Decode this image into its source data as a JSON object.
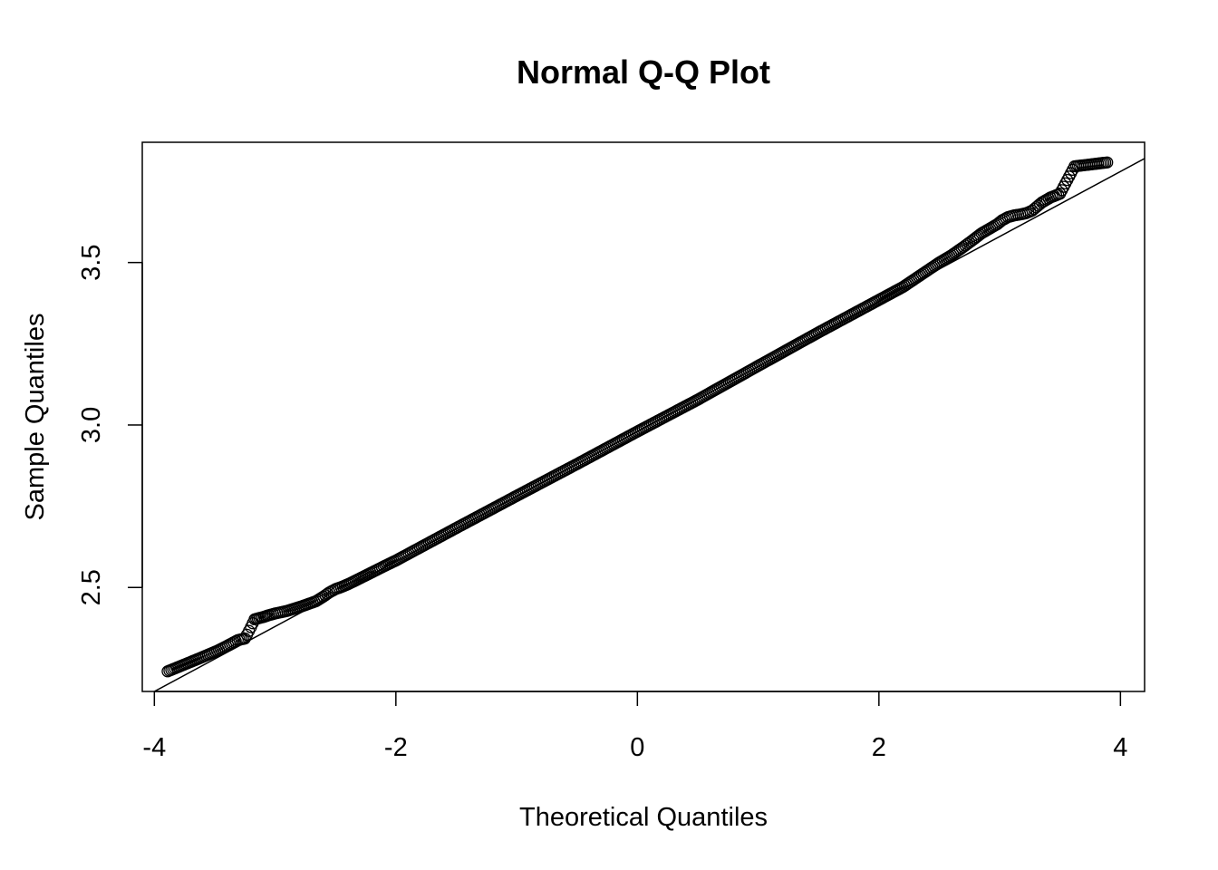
{
  "chart_data": {
    "type": "scatter",
    "title": "Normal Q-Q Plot",
    "xlabel": "Theoretical Quantiles",
    "ylabel": "Sample Quantiles",
    "xlim": [
      -4.1,
      4.2
    ],
    "ylim": [
      2.18,
      3.87
    ],
    "x_ticks": [
      -4,
      -2,
      0,
      2,
      4
    ],
    "x_tick_labels": [
      "-4",
      "-2",
      "0",
      "2",
      "4"
    ],
    "y_ticks": [
      2.5,
      3.0,
      3.5
    ],
    "y_tick_labels": [
      "2.5",
      "3.0",
      "3.5"
    ],
    "grid": false,
    "reference_line": {
      "slope": 0.2,
      "intercept": 2.98
    },
    "sample_points": [
      {
        "x": -3.89,
        "y": 2.242
      },
      {
        "x": -3.62,
        "y": 2.283
      },
      {
        "x": -3.48,
        "y": 2.305
      },
      {
        "x": -3.39,
        "y": 2.322
      },
      {
        "x": -3.31,
        "y": 2.338
      },
      {
        "x": -3.25,
        "y": 2.343
      },
      {
        "x": -3.2,
        "y": 2.378
      },
      {
        "x": -3.17,
        "y": 2.402
      },
      {
        "x": -3.13,
        "y": 2.406
      },
      {
        "x": -3.09,
        "y": 2.41
      },
      {
        "x": -3.05,
        "y": 2.415
      },
      {
        "x": -3.0,
        "y": 2.42
      },
      {
        "x": -2.95,
        "y": 2.424
      },
      {
        "x": -2.9,
        "y": 2.428
      },
      {
        "x": -2.84,
        "y": 2.435
      },
      {
        "x": -2.78,
        "y": 2.442
      },
      {
        "x": -2.72,
        "y": 2.45
      },
      {
        "x": -2.66,
        "y": 2.458
      },
      {
        "x": -2.6,
        "y": 2.472
      },
      {
        "x": -2.55,
        "y": 2.485
      },
      {
        "x": -2.5,
        "y": 2.495
      },
      {
        "x": -2.44,
        "y": 2.503
      },
      {
        "x": -2.38,
        "y": 2.513
      },
      {
        "x": -2.32,
        "y": 2.524
      },
      {
        "x": -2.25,
        "y": 2.537
      },
      {
        "x": -2.18,
        "y": 2.55
      },
      {
        "x": -2.1,
        "y": 2.565
      },
      {
        "x": -2.0,
        "y": 2.583
      },
      {
        "x": -1.8,
        "y": 2.623
      },
      {
        "x": -1.5,
        "y": 2.683
      },
      {
        "x": -1.0,
        "y": 2.782
      },
      {
        "x": -0.5,
        "y": 2.88
      },
      {
        "x": 0.0,
        "y": 2.98
      },
      {
        "x": 0.5,
        "y": 3.078
      },
      {
        "x": 1.0,
        "y": 3.182
      },
      {
        "x": 1.5,
        "y": 3.285
      },
      {
        "x": 2.0,
        "y": 3.385
      },
      {
        "x": 2.1,
        "y": 3.405
      },
      {
        "x": 2.2,
        "y": 3.425
      },
      {
        "x": 2.3,
        "y": 3.45
      },
      {
        "x": 2.4,
        "y": 3.475
      },
      {
        "x": 2.5,
        "y": 3.5
      },
      {
        "x": 2.6,
        "y": 3.522
      },
      {
        "x": 2.7,
        "y": 3.548
      },
      {
        "x": 2.78,
        "y": 3.57
      },
      {
        "x": 2.85,
        "y": 3.59
      },
      {
        "x": 2.92,
        "y": 3.605
      },
      {
        "x": 2.98,
        "y": 3.618
      },
      {
        "x": 3.02,
        "y": 3.63
      },
      {
        "x": 3.07,
        "y": 3.64
      },
      {
        "x": 3.12,
        "y": 3.645
      },
      {
        "x": 3.17,
        "y": 3.648
      },
      {
        "x": 3.22,
        "y": 3.652
      },
      {
        "x": 3.27,
        "y": 3.66
      },
      {
        "x": 3.35,
        "y": 3.685
      },
      {
        "x": 3.42,
        "y": 3.7
      },
      {
        "x": 3.5,
        "y": 3.712
      },
      {
        "x": 3.62,
        "y": 3.796
      },
      {
        "x": 3.89,
        "y": 3.808
      }
    ]
  }
}
